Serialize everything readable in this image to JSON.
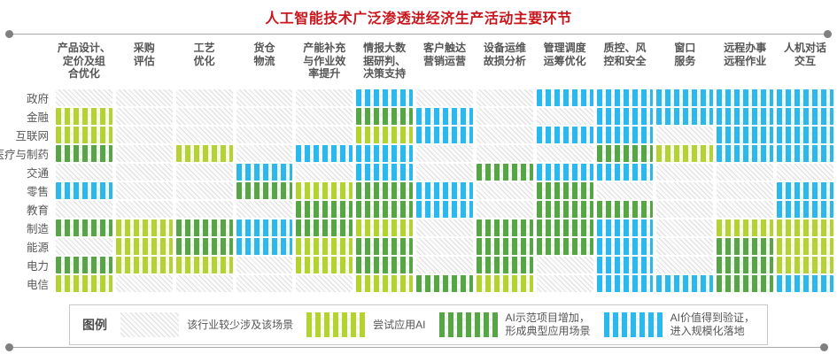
{
  "title": "人工智能技术广泛渗透进经济生产活动主要环节",
  "chart_data": {
    "type": "heatmap",
    "columns": [
      "产品设计、\n定价及组\n合优化",
      "采购\n评估",
      "工艺\n优化",
      "货仓\n物流",
      "产能补充\n与作业效\n率提升",
      "情报大数\n据研判、\n决策支持",
      "客户触达\n营销运营",
      "设备运维\n故损分析",
      "管理调度\n运筹优化",
      "质控、风\n控和安全",
      "窗口\n服务",
      "远程办事\n远程作业",
      "人机对话\n交互"
    ],
    "rows": [
      "政府",
      "金融",
      "互联网",
      "医疗与制药",
      "交通",
      "零售",
      "教育",
      "制造",
      "能源",
      "电力",
      "电信"
    ],
    "levels": [
      {
        "value": 0,
        "label": "该行业较少涉及该场景",
        "color": "#dedede"
      },
      {
        "value": 1,
        "label": "尝试应用AI",
        "color": "#b5d233"
      },
      {
        "value": 2,
        "label": "AI示范项目增加，形成典型应用场景",
        "color": "#57a546"
      },
      {
        "value": 3,
        "label": "AI价值得到验证，进入规模化落地",
        "color": "#2cb8ec"
      }
    ],
    "matrix": [
      [
        0,
        0,
        0,
        0,
        0,
        3,
        0,
        0,
        3,
        3,
        3,
        3,
        3
      ],
      [
        1,
        0,
        0,
        0,
        0,
        2,
        3,
        0,
        0,
        3,
        3,
        3,
        3
      ],
      [
        1,
        0,
        0,
        0,
        0,
        1,
        3,
        0,
        3,
        3,
        0,
        3,
        3
      ],
      [
        2,
        0,
        1,
        0,
        3,
        3,
        0,
        0,
        0,
        2,
        1,
        3,
        3
      ],
      [
        0,
        0,
        0,
        3,
        0,
        3,
        0,
        2,
        3,
        3,
        0,
        0,
        0
      ],
      [
        3,
        0,
        0,
        2,
        1,
        2,
        3,
        0,
        2,
        0,
        0,
        0,
        3
      ],
      [
        0,
        0,
        0,
        0,
        2,
        2,
        3,
        0,
        2,
        2,
        0,
        0,
        3
      ],
      [
        2,
        1,
        2,
        3,
        2,
        1,
        0,
        2,
        2,
        3,
        0,
        1,
        1
      ],
      [
        0,
        1,
        2,
        3,
        1,
        2,
        0,
        2,
        2,
        3,
        0,
        2,
        1
      ],
      [
        2,
        1,
        1,
        0,
        1,
        2,
        0,
        2,
        0,
        3,
        0,
        2,
        1
      ],
      [
        1,
        0,
        0,
        0,
        0,
        1,
        2,
        1,
        0,
        3,
        3,
        2,
        3
      ]
    ]
  },
  "legend": {
    "title": "图例",
    "items": [
      {
        "label": "该行业较少涉及该场景",
        "level": 0
      },
      {
        "label": "尝试应用AI",
        "level": 1
      },
      {
        "label": "AI示范项目增加，\n形成典型应用场景",
        "level": 2
      },
      {
        "label": "AI价值得到验证，\n进入规模化落地",
        "level": 3
      }
    ]
  }
}
